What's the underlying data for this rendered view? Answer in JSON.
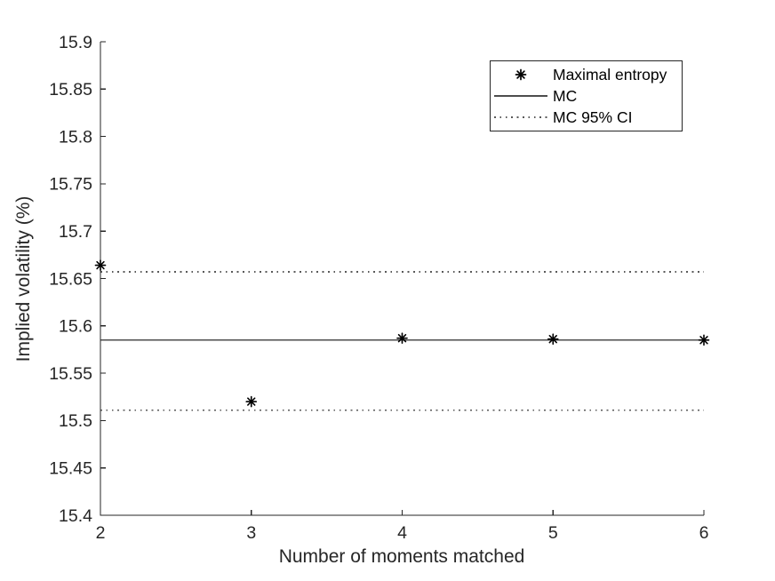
{
  "chart_data": {
    "type": "scatter",
    "title": "",
    "xlabel": "Number of moments matched",
    "ylabel": "Implied volatility (%)",
    "xlim": [
      2,
      6
    ],
    "ylim": [
      15.4,
      15.9
    ],
    "grid": false,
    "axis_color": "#262626",
    "xticks": [
      {
        "v": 2,
        "label": "2"
      },
      {
        "v": 3,
        "label": "3"
      },
      {
        "v": 4,
        "label": "4"
      },
      {
        "v": 5,
        "label": "5"
      },
      {
        "v": 6,
        "label": "6"
      }
    ],
    "yticks": [
      {
        "v": 15.4,
        "label": "15.4"
      },
      {
        "v": 15.45,
        "label": "15.45"
      },
      {
        "v": 15.5,
        "label": "15.5"
      },
      {
        "v": 15.55,
        "label": "15.55"
      },
      {
        "v": 15.6,
        "label": "15.6"
      },
      {
        "v": 15.65,
        "label": "15.65"
      },
      {
        "v": 15.7,
        "label": "15.7"
      },
      {
        "v": 15.75,
        "label": "15.75"
      },
      {
        "v": 15.8,
        "label": "15.8"
      },
      {
        "v": 15.85,
        "label": "15.85"
      },
      {
        "v": 15.9,
        "label": "15.9"
      }
    ],
    "series": [
      {
        "name": "Maximal entropy",
        "type": "scatter",
        "marker": "asterisk",
        "color": "#000000",
        "x": [
          2,
          3,
          4,
          5,
          6
        ],
        "y": [
          15.664,
          15.52,
          15.587,
          15.586,
          15.585
        ]
      },
      {
        "name": "MC",
        "type": "hline",
        "style": "solid",
        "color": "#4d4d4d",
        "y": 15.585
      },
      {
        "name": "MC 95% CI",
        "type": "hline",
        "style": "dotted",
        "color": "#595959",
        "y": [
          15.657,
          15.511
        ]
      }
    ],
    "legend": {
      "position": "northeast",
      "entries": [
        "Maximal entropy",
        "MC",
        "MC 95% CI"
      ]
    }
  }
}
